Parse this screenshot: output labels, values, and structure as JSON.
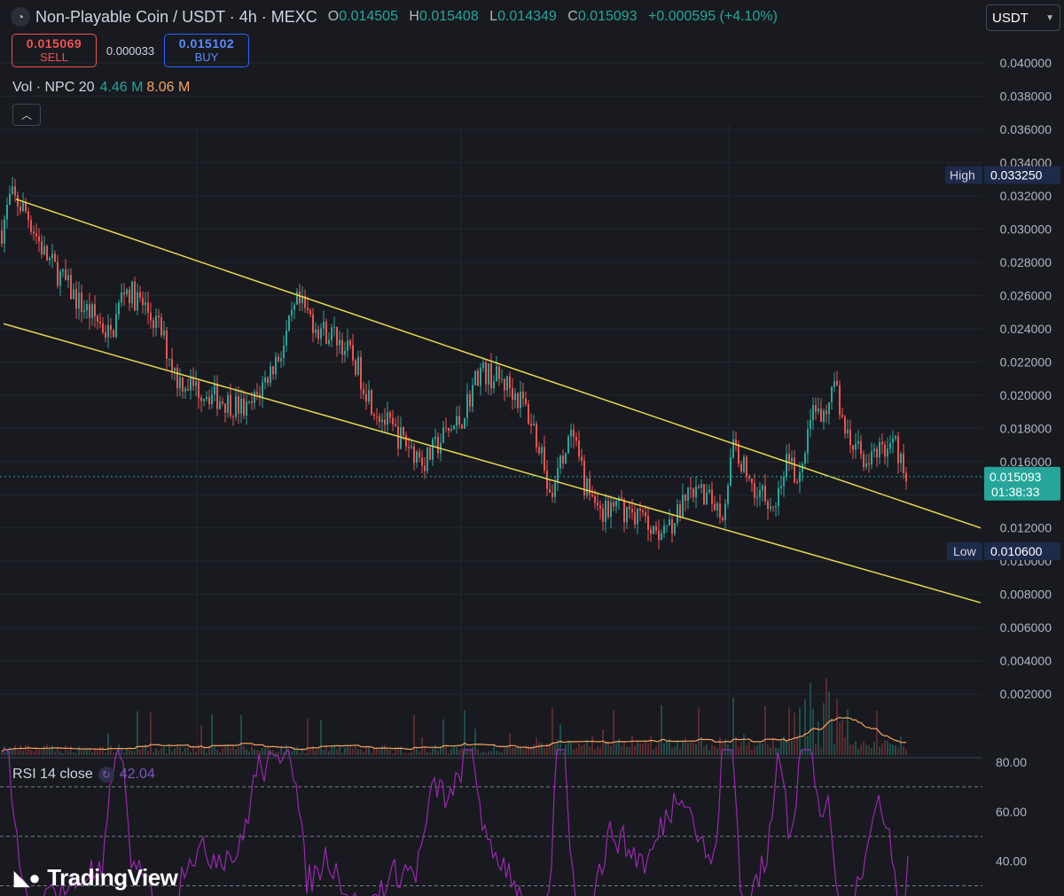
{
  "header": {
    "title": "Non-Playable Coin / USDT · 4h · MEXC",
    "ohlc": [
      {
        "k": "O",
        "v": "0.014505"
      },
      {
        "k": "H",
        "v": "0.015408"
      },
      {
        "k": "L",
        "v": "0.014349"
      },
      {
        "k": "C",
        "v": "0.015093"
      }
    ],
    "change": "+0.000595 (+4.10%)"
  },
  "trade": {
    "sell_price": "0.015069",
    "sell_label": "SELL",
    "spread": "0.000033",
    "buy_price": "0.015102",
    "buy_label": "BUY"
  },
  "volume": {
    "label": "Vol · NPC 20",
    "value": "4.46 M",
    "ma": "8.06 M"
  },
  "currency": "USDT",
  "rsi": {
    "label": "RSI 14 close",
    "value": "42.04"
  },
  "brand": "TradingView",
  "colors": {
    "up": "#26a69a",
    "down": "#ef5350",
    "trendline": "#e8d94a",
    "rsi": "#9c27b0",
    "vol_ma": "#f7a35c",
    "bg": "#181a20"
  },
  "chart_data": {
    "type": "candlestick",
    "ylim": [
      0.0,
      0.04
    ],
    "y_ticks": [
      "0.040000",
      "0.038000",
      "0.036000",
      "0.034000",
      "0.032000",
      "0.030000",
      "0.028000",
      "0.026000",
      "0.024000",
      "0.022000",
      "0.020000",
      "0.018000",
      "0.016000",
      "0.014000",
      "0.012000",
      "0.010000",
      "0.008000",
      "0.006000",
      "0.004000",
      "0.002000"
    ],
    "high_marker": {
      "label": "High",
      "value": "0.033250"
    },
    "low_marker": {
      "label": "Low",
      "value": "0.010600"
    },
    "last_price": {
      "value": "0.015093",
      "countdown": "01:38:33"
    },
    "price_path": [
      [
        0,
        0.0295
      ],
      [
        12,
        0.032
      ],
      [
        30,
        0.031
      ],
      [
        50,
        0.0285
      ],
      [
        70,
        0.027
      ],
      [
        90,
        0.0255
      ],
      [
        110,
        0.0245
      ],
      [
        125,
        0.0235
      ],
      [
        140,
        0.0265
      ],
      [
        160,
        0.0255
      ],
      [
        180,
        0.024
      ],
      [
        200,
        0.021
      ],
      [
        220,
        0.0205
      ],
      [
        240,
        0.02
      ],
      [
        260,
        0.0195
      ],
      [
        280,
        0.019
      ],
      [
        300,
        0.021
      ],
      [
        320,
        0.023
      ],
      [
        335,
        0.0255
      ],
      [
        345,
        0.025
      ],
      [
        360,
        0.024
      ],
      [
        380,
        0.0235
      ],
      [
        400,
        0.022
      ],
      [
        420,
        0.0195
      ],
      [
        440,
        0.018
      ],
      [
        460,
        0.017
      ],
      [
        480,
        0.016
      ],
      [
        500,
        0.0175
      ],
      [
        520,
        0.0185
      ],
      [
        540,
        0.0215
      ],
      [
        560,
        0.021
      ],
      [
        575,
        0.0205
      ],
      [
        590,
        0.0195
      ],
      [
        610,
        0.017
      ],
      [
        620,
        0.0135
      ],
      [
        630,
        0.0155
      ],
      [
        645,
        0.0175
      ],
      [
        660,
        0.0145
      ],
      [
        680,
        0.013
      ],
      [
        700,
        0.0132
      ],
      [
        720,
        0.0128
      ],
      [
        740,
        0.012
      ],
      [
        760,
        0.0125
      ],
      [
        780,
        0.014
      ],
      [
        800,
        0.0138
      ],
      [
        815,
        0.013
      ],
      [
        828,
        0.017
      ],
      [
        845,
        0.015
      ],
      [
        860,
        0.014
      ],
      [
        875,
        0.0135
      ],
      [
        888,
        0.0165
      ],
      [
        900,
        0.0145
      ],
      [
        915,
        0.0195
      ],
      [
        930,
        0.019
      ],
      [
        942,
        0.0205
      ],
      [
        955,
        0.0175
      ],
      [
        970,
        0.0165
      ],
      [
        985,
        0.016
      ],
      [
        1000,
        0.0172
      ],
      [
        1012,
        0.0168
      ],
      [
        1024,
        0.0151
      ]
    ],
    "rsi_ticks": [
      "80.00",
      "60.00",
      "40.00"
    ],
    "rsi_levels": [
      70,
      50,
      30
    ],
    "rsi_last": 42.04,
    "rsi_ylim": [
      25,
      85
    ]
  }
}
